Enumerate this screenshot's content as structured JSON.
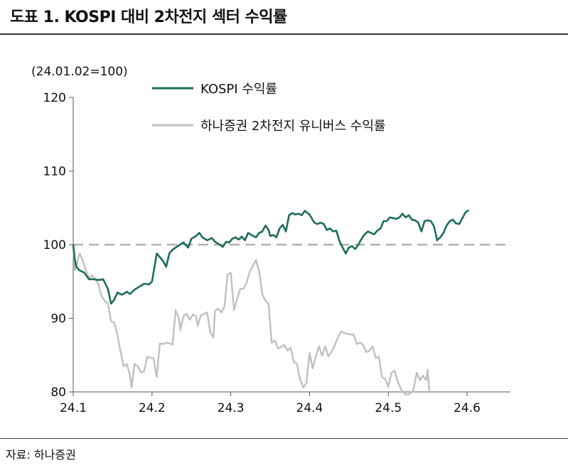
{
  "header": {
    "title": "도표 1. KOSPI 대비 2차전지 섹터 수익률"
  },
  "footer": {
    "source": "자료: 하나증권"
  },
  "chart_data": {
    "type": "line",
    "title": "도표 1. KOSPI 대비 2차전지 섹터 수익률",
    "ylabel": "(24.01.02=100)",
    "xlabel": "",
    "ylim": [
      80,
      120
    ],
    "yticks": [
      "80",
      "90",
      "100",
      "110",
      "120"
    ],
    "xticks": [
      {
        "label": "24.1",
        "x": 1.0
      },
      {
        "label": "24.2",
        "x": 2.0
      },
      {
        "label": "24.3",
        "x": 3.0
      },
      {
        "label": "24.4",
        "x": 4.0
      },
      {
        "label": "24.5",
        "x": 5.0
      },
      {
        "label": "24.6",
        "x": 6.0
      }
    ],
    "xlim": [
      1.0,
      6.55
    ],
    "reference_line": {
      "y": 100,
      "style": "dashed"
    },
    "legend_position": "top",
    "series": [
      {
        "name": "KOSPI 수익률",
        "color": "#1e6b5c",
        "points": [
          [
            1.0,
            100.0
          ],
          [
            1.02,
            98.0
          ],
          [
            1.04,
            97.0
          ],
          [
            1.08,
            96.5
          ],
          [
            1.14,
            96.2
          ],
          [
            1.2,
            95.3
          ],
          [
            1.26,
            95.3
          ],
          [
            1.32,
            95.2
          ],
          [
            1.38,
            95.3
          ],
          [
            1.44,
            94.0
          ],
          [
            1.48,
            92.0
          ],
          [
            1.52,
            92.5
          ],
          [
            1.56,
            93.5
          ],
          [
            1.62,
            93.2
          ],
          [
            1.68,
            93.6
          ],
          [
            1.72,
            93.3
          ],
          [
            1.78,
            93.9
          ],
          [
            1.84,
            94.3
          ],
          [
            1.9,
            94.7
          ],
          [
            1.96,
            94.6
          ],
          [
            2.0,
            95.0
          ],
          [
            2.04,
            97.5
          ],
          [
            2.06,
            98.8
          ],
          [
            2.1,
            98.3
          ],
          [
            2.14,
            97.8
          ],
          [
            2.18,
            97.0
          ],
          [
            2.22,
            98.8
          ],
          [
            2.26,
            99.3
          ],
          [
            2.3,
            99.6
          ],
          [
            2.34,
            99.9
          ],
          [
            2.4,
            100.3
          ],
          [
            2.46,
            99.6
          ],
          [
            2.5,
            100.8
          ],
          [
            2.56,
            101.2
          ],
          [
            2.6,
            101.6
          ],
          [
            2.64,
            101.0
          ],
          [
            2.7,
            100.6
          ],
          [
            2.76,
            100.9
          ],
          [
            2.8,
            100.4
          ],
          [
            2.86,
            100.0
          ],
          [
            2.9,
            99.7
          ],
          [
            2.94,
            100.4
          ],
          [
            2.98,
            100.3
          ],
          [
            3.02,
            100.8
          ],
          [
            3.06,
            101.0
          ],
          [
            3.1,
            100.7
          ],
          [
            3.14,
            101.1
          ],
          [
            3.18,
            100.6
          ],
          [
            3.22,
            101.6
          ],
          [
            3.28,
            101.2
          ],
          [
            3.32,
            101.0
          ],
          [
            3.36,
            101.6
          ],
          [
            3.4,
            101.8
          ],
          [
            3.44,
            102.6
          ],
          [
            3.48,
            102.0
          ],
          [
            3.5,
            101.2
          ],
          [
            3.54,
            101.3
          ],
          [
            3.58,
            101.0
          ],
          [
            3.62,
            102.2
          ],
          [
            3.66,
            102.7
          ],
          [
            3.7,
            101.8
          ],
          [
            3.74,
            104.0
          ],
          [
            3.78,
            104.3
          ],
          [
            3.82,
            104.1
          ],
          [
            3.86,
            104.2
          ],
          [
            3.9,
            104.0
          ],
          [
            3.94,
            104.6
          ],
          [
            4.0,
            104.1
          ],
          [
            4.06,
            103.0
          ],
          [
            4.1,
            102.8
          ],
          [
            4.14,
            103.0
          ],
          [
            4.18,
            102.8
          ],
          [
            4.22,
            102.0
          ],
          [
            4.26,
            102.2
          ],
          [
            4.3,
            101.8
          ],
          [
            4.34,
            101.9
          ],
          [
            4.38,
            100.5
          ],
          [
            4.42,
            99.6
          ],
          [
            4.46,
            98.8
          ],
          [
            4.5,
            99.6
          ],
          [
            4.54,
            99.8
          ],
          [
            4.58,
            99.4
          ],
          [
            4.62,
            100.0
          ],
          [
            4.66,
            100.8
          ],
          [
            4.7,
            101.4
          ],
          [
            4.74,
            101.8
          ],
          [
            4.78,
            101.6
          ],
          [
            4.82,
            101.4
          ],
          [
            4.86,
            101.9
          ],
          [
            4.9,
            102.2
          ],
          [
            4.94,
            103.2
          ],
          [
            4.98,
            103.2
          ],
          [
            5.02,
            103.7
          ],
          [
            5.06,
            103.6
          ],
          [
            5.1,
            103.5
          ],
          [
            5.14,
            103.7
          ],
          [
            5.18,
            104.2
          ],
          [
            5.22,
            103.7
          ],
          [
            5.26,
            104.0
          ],
          [
            5.3,
            103.4
          ],
          [
            5.34,
            103.3
          ],
          [
            5.38,
            103.0
          ],
          [
            5.42,
            101.8
          ],
          [
            5.46,
            103.2
          ],
          [
            5.5,
            103.3
          ],
          [
            5.54,
            103.2
          ],
          [
            5.58,
            102.5
          ],
          [
            5.62,
            100.6
          ],
          [
            5.66,
            101.0
          ],
          [
            5.7,
            101.6
          ],
          [
            5.74,
            102.6
          ],
          [
            5.78,
            103.2
          ],
          [
            5.82,
            103.4
          ],
          [
            5.86,
            102.9
          ],
          [
            5.9,
            102.8
          ],
          [
            5.94,
            103.6
          ],
          [
            5.98,
            104.4
          ],
          [
            6.02,
            104.7
          ]
        ]
      },
      {
        "name": "하나증권 2차전지 유니버스 수익률",
        "color": "#c0c0c0",
        "points": [
          [
            1.0,
            100.0
          ],
          [
            1.02,
            96.5
          ],
          [
            1.04,
            96.9
          ],
          [
            1.06,
            98.0
          ],
          [
            1.08,
            98.8
          ],
          [
            1.12,
            97.9
          ],
          [
            1.16,
            96.5
          ],
          [
            1.2,
            95.5
          ],
          [
            1.24,
            95.8
          ],
          [
            1.28,
            95.4
          ],
          [
            1.32,
            94.6
          ],
          [
            1.36,
            93.0
          ],
          [
            1.4,
            92.4
          ],
          [
            1.44,
            92.0
          ],
          [
            1.48,
            89.6
          ],
          [
            1.52,
            89.4
          ],
          [
            1.56,
            87.8
          ],
          [
            1.6,
            85.5
          ],
          [
            1.64,
            83.5
          ],
          [
            1.68,
            83.8
          ],
          [
            1.72,
            82.3
          ],
          [
            1.74,
            80.6
          ],
          [
            1.78,
            83.8
          ],
          [
            1.82,
            83.5
          ],
          [
            1.86,
            82.6
          ],
          [
            1.9,
            82.8
          ],
          [
            1.94,
            84.8
          ],
          [
            1.98,
            84.6
          ],
          [
            2.02,
            84.6
          ],
          [
            2.06,
            82.0
          ],
          [
            2.1,
            86.6
          ],
          [
            2.14,
            86.5
          ],
          [
            2.18,
            86.7
          ],
          [
            2.22,
            86.6
          ],
          [
            2.26,
            86.4
          ],
          [
            2.3,
            91.1
          ],
          [
            2.34,
            90.0
          ],
          [
            2.36,
            88.4
          ],
          [
            2.4,
            90.3
          ],
          [
            2.44,
            90.6
          ],
          [
            2.48,
            89.8
          ],
          [
            2.52,
            90.5
          ],
          [
            2.56,
            90.3
          ],
          [
            2.58,
            89.0
          ],
          [
            2.62,
            90.4
          ],
          [
            2.66,
            90.6
          ],
          [
            2.7,
            90.8
          ],
          [
            2.74,
            88.1
          ],
          [
            2.78,
            87.4
          ],
          [
            2.8,
            91.0
          ],
          [
            2.84,
            91.3
          ],
          [
            2.88,
            90.8
          ],
          [
            2.92,
            91.6
          ],
          [
            2.96,
            96.0
          ],
          [
            3.0,
            96.2
          ],
          [
            3.04,
            91.1
          ],
          [
            3.08,
            92.6
          ],
          [
            3.12,
            94.0
          ],
          [
            3.16,
            94.0
          ],
          [
            3.2,
            94.8
          ],
          [
            3.24,
            96.3
          ],
          [
            3.28,
            97.1
          ],
          [
            3.32,
            97.9
          ],
          [
            3.36,
            96.4
          ],
          [
            3.4,
            93.3
          ],
          [
            3.44,
            92.4
          ],
          [
            3.48,
            92.0
          ],
          [
            3.52,
            86.7
          ],
          [
            3.56,
            87.0
          ],
          [
            3.6,
            85.9
          ],
          [
            3.64,
            86.1
          ],
          [
            3.68,
            86.4
          ],
          [
            3.72,
            85.6
          ],
          [
            3.76,
            86.0
          ],
          [
            3.8,
            84.1
          ],
          [
            3.84,
            83.8
          ],
          [
            3.88,
            81.7
          ],
          [
            3.92,
            80.6
          ],
          [
            3.96,
            81.2
          ],
          [
            4.0,
            85.3
          ],
          [
            4.04,
            83.2
          ],
          [
            4.08,
            84.8
          ],
          [
            4.12,
            86.2
          ],
          [
            4.16,
            84.9
          ],
          [
            4.2,
            86.2
          ],
          [
            4.24,
            84.8
          ],
          [
            4.28,
            85.5
          ],
          [
            4.32,
            86.3
          ],
          [
            4.36,
            87.4
          ],
          [
            4.4,
            88.2
          ],
          [
            4.44,
            88.0
          ],
          [
            4.48,
            87.9
          ],
          [
            4.52,
            87.8
          ],
          [
            4.56,
            87.8
          ],
          [
            4.6,
            86.5
          ],
          [
            4.64,
            86.7
          ],
          [
            4.68,
            86.4
          ],
          [
            4.72,
            85.4
          ],
          [
            4.76,
            85.6
          ],
          [
            4.8,
            86.2
          ],
          [
            4.84,
            84.6
          ],
          [
            4.88,
            84.8
          ],
          [
            4.92,
            82.0
          ],
          [
            4.96,
            81.8
          ],
          [
            5.0,
            80.7
          ],
          [
            5.04,
            82.6
          ],
          [
            5.08,
            82.9
          ],
          [
            5.12,
            81.4
          ],
          [
            5.16,
            80.4
          ],
          [
            5.2,
            79.8
          ],
          [
            5.24,
            79.6
          ],
          [
            5.28,
            79.8
          ],
          [
            5.32,
            80.3
          ],
          [
            5.36,
            82.6
          ],
          [
            5.4,
            81.6
          ],
          [
            5.44,
            82.2
          ],
          [
            5.48,
            81.6
          ],
          [
            5.5,
            83.0
          ],
          [
            5.52,
            80.0
          ]
        ]
      }
    ]
  }
}
